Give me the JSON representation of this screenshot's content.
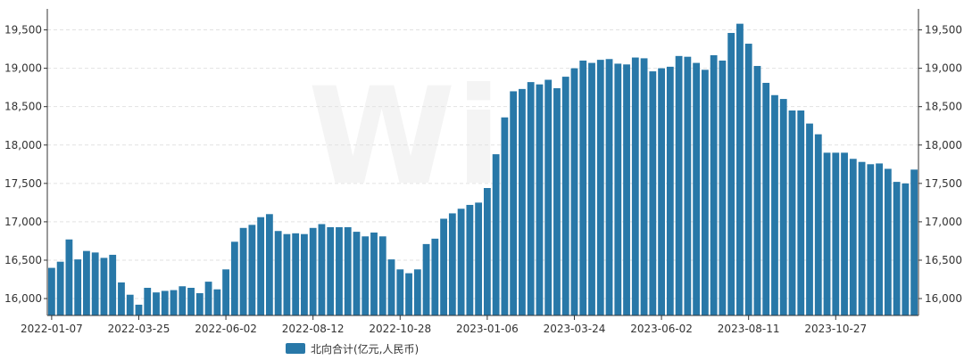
{
  "colors": {
    "bar": "#2878A8",
    "grid": "#e2e2e2",
    "axis": "#333333",
    "text": "#333333"
  },
  "chart_data": {
    "type": "bar",
    "title": "",
    "xlabel": "",
    "ylabel": "",
    "ylim": [
      15780,
      19750
    ],
    "yticks": [
      16000,
      16500,
      17000,
      17500,
      18000,
      18500,
      19000,
      19500
    ],
    "ytick_labels": [
      "16,000",
      "16,500",
      "17,000",
      "17,500",
      "18,000",
      "18,500",
      "19,000",
      "19,500"
    ],
    "right_axis": true,
    "grid": "horizontal dashed",
    "legend_position": "bottom",
    "xtick_labels": [
      "2022-01-07",
      "2022-03-25",
      "2022-06-02",
      "2022-08-12",
      "2022-10-28",
      "2023-01-06",
      "2023-03-24",
      "2023-06-02",
      "2023-08-11",
      "2023-10-27"
    ],
    "xtick_indices": [
      0,
      10,
      20,
      30,
      40,
      50,
      60,
      70,
      80,
      90
    ],
    "series": [
      {
        "name": "北向合计(亿元,人民币)",
        "values": [
          16400,
          16480,
          16770,
          16510,
          16620,
          16600,
          16530,
          16570,
          16210,
          16050,
          15920,
          16140,
          16080,
          16100,
          16110,
          16160,
          16140,
          16070,
          16220,
          16120,
          16380,
          16740,
          16920,
          16960,
          17060,
          17100,
          16880,
          16840,
          16850,
          16840,
          16920,
          16970,
          16930,
          16930,
          16930,
          16870,
          16810,
          16860,
          16810,
          16510,
          16380,
          16330,
          16380,
          16710,
          16780,
          17040,
          17110,
          17170,
          17220,
          17250,
          17440,
          17880,
          18360,
          18700,
          18730,
          18820,
          18790,
          18850,
          18740,
          18890,
          19000,
          19100,
          19070,
          19110,
          19120,
          19060,
          19050,
          19140,
          19130,
          18960,
          19000,
          19020,
          19160,
          19150,
          19070,
          18980,
          19170,
          19100,
          19460,
          19580,
          19320,
          19030,
          18810,
          18650,
          18600,
          18450,
          18450,
          18280,
          18140,
          17900,
          17900,
          17900,
          17820,
          17780,
          17750,
          17760,
          17690,
          17520,
          17500,
          17680
        ]
      }
    ]
  }
}
